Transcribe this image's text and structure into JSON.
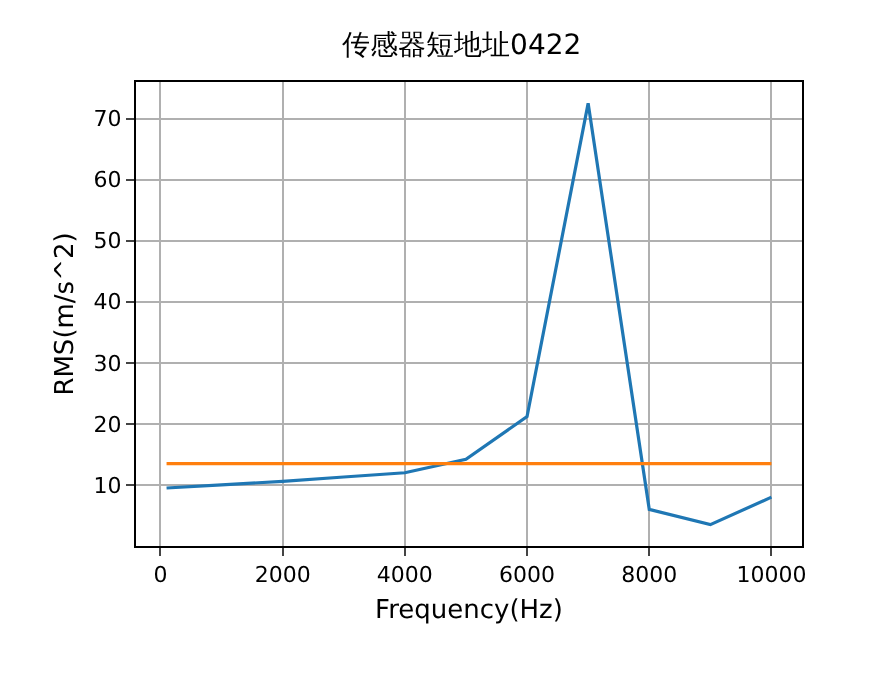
{
  "chart_data": {
    "type": "line",
    "title": "传感器短地址0422",
    "xlabel": "Frequency(Hz)",
    "ylabel": "RMS(m/s^2)",
    "series": [
      {
        "color": "#1f77b4",
        "x": [
          100,
          1000,
          2000,
          3000,
          4000,
          5000,
          6000,
          7000,
          8000,
          9000,
          10000
        ],
        "values": [
          9.5,
          10,
          10.6,
          11.3,
          12,
          14.2,
          21.2,
          72.5,
          6,
          3.5,
          8
        ]
      },
      {
        "color": "#ff7f0e",
        "x": [
          100,
          10000
        ],
        "values": [
          13.5,
          13.5
        ]
      }
    ],
    "xlim": [
      -400,
      10500
    ],
    "xticks": [
      0,
      2000,
      4000,
      6000,
      8000,
      10000
    ],
    "ylim": [
      0,
      76
    ],
    "yticks": [
      10,
      20,
      30,
      40,
      50,
      60,
      70
    ],
    "grid": true,
    "marker": "none",
    "line_style": "solid"
  }
}
